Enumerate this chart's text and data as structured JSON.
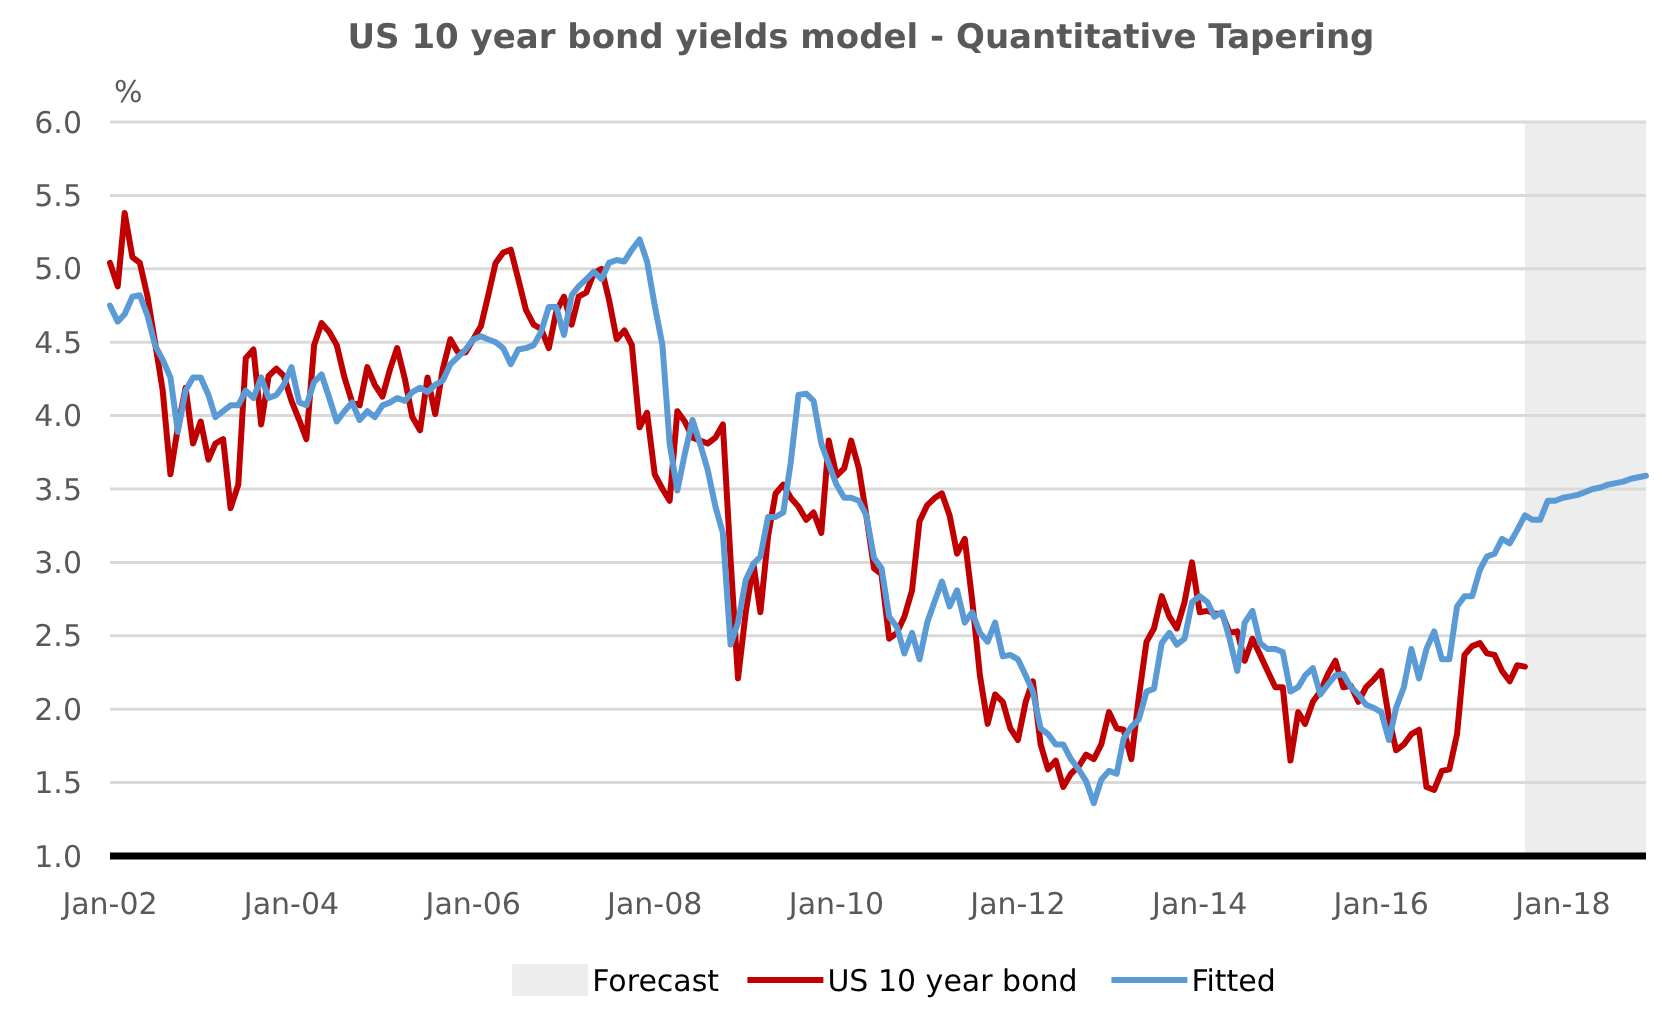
{
  "chart_data": {
    "type": "line",
    "title": "US 10 year bond yields model - Quantitative Tapering",
    "ylabel": "%",
    "x": [
      "2002-01",
      "2002-02",
      "2002-03",
      "2002-04",
      "2002-05",
      "2002-06",
      "2002-07",
      "2002-08",
      "2002-09",
      "2002-10",
      "2002-11",
      "2002-12",
      "2003-01",
      "2003-02",
      "2003-03",
      "2003-04",
      "2003-05",
      "2003-06",
      "2003-07",
      "2003-08",
      "2003-09",
      "2003-10",
      "2003-11",
      "2003-12",
      "2004-01",
      "2004-02",
      "2004-03",
      "2004-04",
      "2004-05",
      "2004-06",
      "2004-07",
      "2004-08",
      "2004-09",
      "2004-10",
      "2004-11",
      "2004-12",
      "2005-01",
      "2005-02",
      "2005-03",
      "2005-04",
      "2005-05",
      "2005-06",
      "2005-07",
      "2005-08",
      "2005-09",
      "2005-10",
      "2005-11",
      "2005-12",
      "2006-01",
      "2006-02",
      "2006-03",
      "2006-04",
      "2006-05",
      "2006-06",
      "2006-07",
      "2006-08",
      "2006-09",
      "2006-10",
      "2006-11",
      "2006-12",
      "2007-01",
      "2007-02",
      "2007-03",
      "2007-04",
      "2007-05",
      "2007-06",
      "2007-07",
      "2007-08",
      "2007-09",
      "2007-10",
      "2007-11",
      "2007-12",
      "2008-01",
      "2008-02",
      "2008-03",
      "2008-04",
      "2008-05",
      "2008-06",
      "2008-07",
      "2008-08",
      "2008-09",
      "2008-10",
      "2008-11",
      "2008-12",
      "2009-01",
      "2009-02",
      "2009-03",
      "2009-04",
      "2009-05",
      "2009-06",
      "2009-07",
      "2009-08",
      "2009-09",
      "2009-10",
      "2009-11",
      "2009-12",
      "2010-01",
      "2010-02",
      "2010-03",
      "2010-04",
      "2010-05",
      "2010-06",
      "2010-07",
      "2010-08",
      "2010-09",
      "2010-10",
      "2010-11",
      "2010-12",
      "2011-01",
      "2011-02",
      "2011-03",
      "2011-04",
      "2011-05",
      "2011-06",
      "2011-07",
      "2011-08",
      "2011-09",
      "2011-10",
      "2011-11",
      "2011-12",
      "2012-01",
      "2012-02",
      "2012-03",
      "2012-04",
      "2012-05",
      "2012-06",
      "2012-07",
      "2012-08",
      "2012-09",
      "2012-10",
      "2012-11",
      "2012-12",
      "2013-01",
      "2013-02",
      "2013-03",
      "2013-04",
      "2013-05",
      "2013-06",
      "2013-07",
      "2013-08",
      "2013-09",
      "2013-10",
      "2013-11",
      "2013-12",
      "2014-01",
      "2014-02",
      "2014-03",
      "2014-04",
      "2014-05",
      "2014-06",
      "2014-07",
      "2014-08",
      "2014-09",
      "2014-10",
      "2014-11",
      "2014-12",
      "2015-01",
      "2015-02",
      "2015-03",
      "2015-04",
      "2015-05",
      "2015-06",
      "2015-07",
      "2015-08",
      "2015-09",
      "2015-10",
      "2015-11",
      "2015-12",
      "2016-01",
      "2016-02",
      "2016-03",
      "2016-04",
      "2016-05",
      "2016-06",
      "2016-07",
      "2016-08",
      "2016-09",
      "2016-10",
      "2016-11",
      "2016-12",
      "2017-01",
      "2017-02",
      "2017-03",
      "2017-04",
      "2017-05",
      "2017-06",
      "2017-07",
      "2017-08",
      "2017-09",
      "2017-10",
      "2017-11",
      "2017-12",
      "2018-01",
      "2018-02",
      "2018-03",
      "2018-04",
      "2018-05",
      "2018-06",
      "2018-07",
      "2018-08",
      "2018-09",
      "2018-10",
      "2018-11",
      "2018-12"
    ],
    "series": [
      {
        "name": "US 10 year bond",
        "color": "#c00000",
        "values": [
          5.04,
          4.88,
          5.38,
          5.08,
          5.04,
          4.81,
          4.5,
          4.17,
          3.6,
          3.92,
          4.19,
          3.81,
          3.96,
          3.7,
          3.81,
          3.84,
          3.37,
          3.53,
          4.39,
          4.45,
          3.94,
          4.27,
          4.32,
          4.27,
          4.1,
          3.97,
          3.84,
          4.48,
          4.63,
          4.57,
          4.48,
          4.26,
          4.09,
          4.07,
          4.33,
          4.21,
          4.13,
          4.32,
          4.46,
          4.25,
          3.99,
          3.9,
          4.26,
          4.01,
          4.32,
          4.52,
          4.43,
          4.43,
          4.52,
          4.61,
          4.81,
          5.04,
          5.11,
          5.13,
          4.93,
          4.72,
          4.62,
          4.59,
          4.46,
          4.71,
          4.81,
          4.62,
          4.81,
          4.84,
          4.97,
          5.0,
          4.79,
          4.52,
          4.58,
          4.48,
          3.92,
          4.02,
          3.6,
          3.5,
          3.42,
          4.03,
          3.96,
          3.85,
          3.83,
          3.81,
          3.85,
          3.94,
          3.02,
          2.21,
          2.66,
          2.99,
          2.66,
          3.18,
          3.47,
          3.53,
          3.44,
          3.38,
          3.29,
          3.34,
          3.2,
          3.83,
          3.59,
          3.64,
          3.83,
          3.64,
          3.32,
          2.96,
          2.92,
          2.48,
          2.52,
          2.63,
          2.81,
          3.28,
          3.39,
          3.44,
          3.47,
          3.32,
          3.06,
          3.16,
          2.74,
          2.23,
          1.9,
          2.1,
          2.05,
          1.87,
          1.79,
          2.05,
          2.19,
          1.76,
          1.59,
          1.65,
          1.47,
          1.56,
          1.61,
          1.69,
          1.66,
          1.76,
          1.98,
          1.87,
          1.86,
          1.66,
          2.08,
          2.46,
          2.55,
          2.77,
          2.63,
          2.55,
          2.73,
          3.0,
          2.66,
          2.67,
          2.65,
          2.65,
          2.52,
          2.53,
          2.33,
          2.48,
          2.37,
          2.26,
          2.15,
          2.15,
          1.65,
          1.98,
          1.9,
          2.05,
          2.12,
          2.24,
          2.33,
          2.15,
          2.16,
          2.05,
          2.15,
          2.2,
          2.26,
          1.94,
          1.72,
          1.76,
          1.83,
          1.86,
          1.47,
          1.45,
          1.58,
          1.59,
          1.83,
          2.37,
          2.43,
          2.45,
          2.38,
          2.37,
          2.26,
          2.19,
          2.3,
          2.29,
          null,
          null,
          null,
          null,
          null,
          null,
          null,
          null,
          null,
          null,
          null,
          null,
          null,
          null,
          null,
          null
        ]
      },
      {
        "name": "Fitted",
        "color": "#5b9bd5",
        "values": [
          4.75,
          4.64,
          4.69,
          4.81,
          4.82,
          4.68,
          4.48,
          4.38,
          4.26,
          3.89,
          4.17,
          4.26,
          4.26,
          4.14,
          3.99,
          4.03,
          4.07,
          4.07,
          4.17,
          4.12,
          4.26,
          4.12,
          4.14,
          4.21,
          4.33,
          4.09,
          4.07,
          4.23,
          4.28,
          4.12,
          3.96,
          4.03,
          4.09,
          3.97,
          4.03,
          3.99,
          4.07,
          4.09,
          4.12,
          4.1,
          4.16,
          4.19,
          4.16,
          4.21,
          4.24,
          4.35,
          4.4,
          4.45,
          4.52,
          4.54,
          4.52,
          4.5,
          4.46,
          4.35,
          4.45,
          4.46,
          4.48,
          4.57,
          4.74,
          4.74,
          4.55,
          4.82,
          4.88,
          4.93,
          4.98,
          4.93,
          5.04,
          5.06,
          5.05,
          5.13,
          5.2,
          5.05,
          4.75,
          4.48,
          3.81,
          3.49,
          3.74,
          3.97,
          3.81,
          3.63,
          3.38,
          3.2,
          2.44,
          2.59,
          2.88,
          2.99,
          3.04,
          3.31,
          3.31,
          3.34,
          3.68,
          4.14,
          4.15,
          4.1,
          3.81,
          3.67,
          3.53,
          3.44,
          3.44,
          3.42,
          3.32,
          3.03,
          2.96,
          2.63,
          2.56,
          2.38,
          2.52,
          2.34,
          2.59,
          2.74,
          2.87,
          2.7,
          2.81,
          2.59,
          2.66,
          2.52,
          2.46,
          2.59,
          2.36,
          2.37,
          2.34,
          2.23,
          2.12,
          1.87,
          1.83,
          1.76,
          1.76,
          1.66,
          1.59,
          1.51,
          1.36,
          1.52,
          1.58,
          1.56,
          1.8,
          1.88,
          1.93,
          2.12,
          2.14,
          2.45,
          2.52,
          2.44,
          2.48,
          2.73,
          2.77,
          2.73,
          2.63,
          2.66,
          2.48,
          2.26,
          2.59,
          2.67,
          2.45,
          2.41,
          2.41,
          2.39,
          2.12,
          2.15,
          2.23,
          2.28,
          2.1,
          2.17,
          2.23,
          2.24,
          2.15,
          2.1,
          2.03,
          2.01,
          1.98,
          1.79,
          2.01,
          2.15,
          2.41,
          2.21,
          2.41,
          2.53,
          2.34,
          2.34,
          2.7,
          2.77,
          2.77,
          2.95,
          3.04,
          3.06,
          3.16,
          3.13,
          3.22,
          3.32,
          3.29,
          3.29,
          3.42,
          3.42,
          3.44,
          3.45,
          3.46,
          3.48,
          3.5,
          3.51,
          3.53,
          3.54,
          3.55,
          3.57,
          3.58,
          3.59
        ]
      }
    ],
    "bands": [
      {
        "axis": "x",
        "from": "2017-08",
        "to": "2018-12",
        "label": "Forecast",
        "color": "#ededed"
      }
    ],
    "xlim": [
      "2002-01",
      "2018-12"
    ],
    "xticks": [
      {
        "value": "2002-01",
        "label": "Jan-02"
      },
      {
        "value": "2004-01",
        "label": "Jan-04"
      },
      {
        "value": "2006-01",
        "label": "Jan-06"
      },
      {
        "value": "2008-01",
        "label": "Jan-08"
      },
      {
        "value": "2010-01",
        "label": "Jan-10"
      },
      {
        "value": "2012-01",
        "label": "Jan-12"
      },
      {
        "value": "2014-01",
        "label": "Jan-14"
      },
      {
        "value": "2016-01",
        "label": "Jan-16"
      },
      {
        "value": "2018-01",
        "label": "Jan-18"
      }
    ],
    "ylim": [
      1,
      6
    ],
    "yticks": [
      {
        "value": 1,
        "label": "1.0"
      },
      {
        "value": 1.5,
        "label": "1.5"
      },
      {
        "value": 2,
        "label": "2.0"
      },
      {
        "value": 2.5,
        "label": "2.5"
      },
      {
        "value": 3,
        "label": "3.0"
      },
      {
        "value": 3.5,
        "label": "3.5"
      },
      {
        "value": 4,
        "label": "4.0"
      },
      {
        "value": 4.5,
        "label": "4.5"
      },
      {
        "value": 5,
        "label": "5.0"
      },
      {
        "value": 5.5,
        "label": "5.5"
      },
      {
        "value": 6,
        "label": "6.0"
      }
    ],
    "grid": "y",
    "legend": "bottom",
    "marker": "none",
    "line_style": "solid"
  }
}
